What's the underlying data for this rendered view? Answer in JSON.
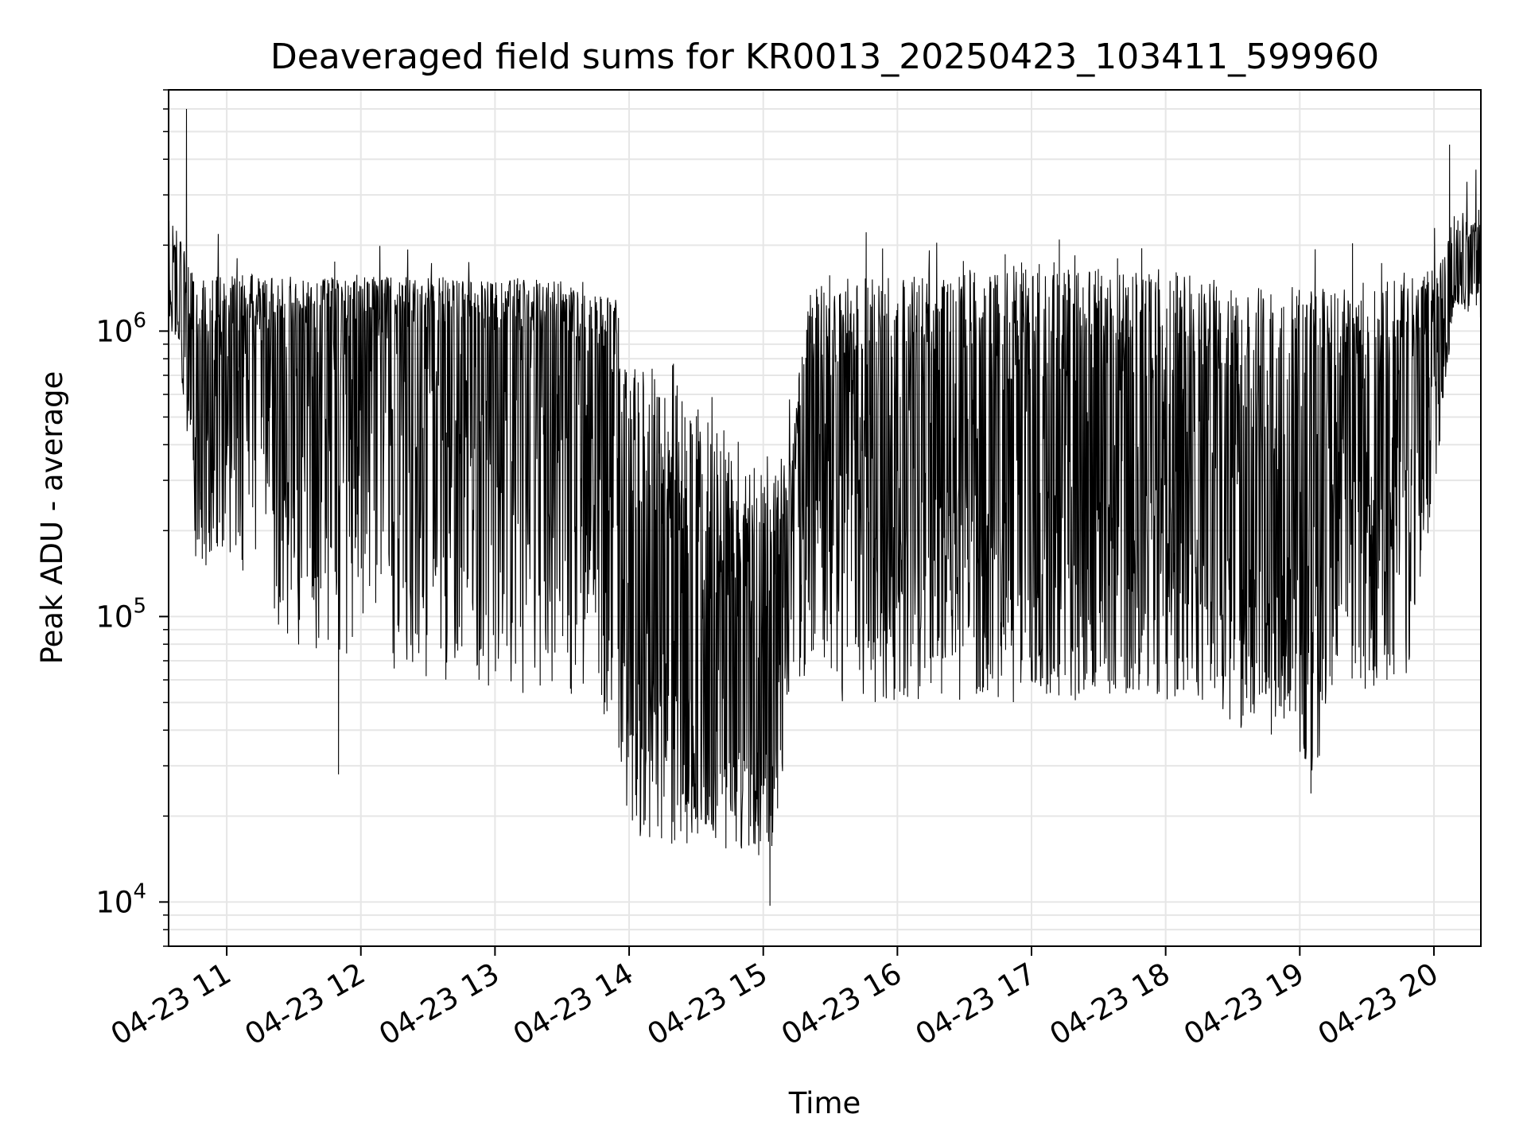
{
  "chart_data": {
    "type": "line",
    "title": "Deaveraged field sums for KR0013_20250423_103411_599960",
    "xlabel": "Time",
    "ylabel": "Peak ADU - average",
    "yscale": "log",
    "grid": true,
    "colors": {
      "line": "#000000",
      "grid": "#e6e6e6",
      "axes": "#000000"
    },
    "xlim": [
      "04-23 10:34",
      "04-23 20:21"
    ],
    "ylim": [
      7000,
      7000000
    ],
    "x_ticks": [
      "04-23 11",
      "04-23 12",
      "04-23 13",
      "04-23 14",
      "04-23 15",
      "04-23 16",
      "04-23 17",
      "04-23 18",
      "04-23 19",
      "04-23 20"
    ],
    "y_ticks": [
      {
        "base": "10",
        "exp": "4",
        "value": 10000
      },
      {
        "base": "10",
        "exp": "5",
        "value": 100000
      },
      {
        "base": "10",
        "exp": "6",
        "value": 1000000
      }
    ],
    "series": [
      {
        "time_unit": "hour of 2025-04-23",
        "samples": 3200,
        "envelope_hours": [
          10.57,
          10.65,
          10.75,
          10.85,
          11.0,
          11.5,
          12.0,
          12.5,
          13.0,
          13.5,
          13.9,
          14.0,
          14.3,
          14.6,
          14.9,
          15.05,
          15.2,
          15.35,
          15.6,
          16.0,
          16.5,
          17.0,
          17.5,
          18.0,
          18.3,
          18.6,
          18.9,
          19.1,
          19.3,
          19.5,
          19.8,
          20.05,
          20.15,
          20.35
        ],
        "envelope_upper": [
          2500000,
          2200000,
          1600000,
          1500000,
          1600000,
          1550000,
          1550000,
          1550000,
          1550000,
          1500000,
          1300000,
          900000,
          650000,
          500000,
          380000,
          300000,
          450000,
          1400000,
          1550000,
          1600000,
          1600000,
          1650000,
          1650000,
          1650000,
          1550000,
          1500000,
          1450000,
          1400000,
          1450000,
          1500000,
          1500000,
          1800000,
          2600000,
          2700000
        ],
        "envelope_median": [
          1500000,
          1200000,
          450000,
          500000,
          750000,
          850000,
          900000,
          900000,
          850000,
          800000,
          600000,
          150000,
          70000,
          45000,
          35000,
          35000,
          200000,
          400000,
          400000,
          350000,
          300000,
          300000,
          300000,
          330000,
          200000,
          150000,
          150000,
          500000,
          500000,
          300000,
          500000,
          900000,
          1500000,
          1500000
        ],
        "envelope_lower": [
          1000000,
          900000,
          150000,
          150000,
          150000,
          80000,
          70000,
          60000,
          55000,
          50000,
          40000,
          17000,
          16000,
          15000,
          15000,
          14000,
          40000,
          60000,
          50000,
          50000,
          50000,
          50000,
          50000,
          50000,
          45000,
          35000,
          40000,
          25000,
          60000,
          55000,
          60000,
          400000,
          1200000,
          1100000
        ]
      }
    ],
    "notable_points": [
      {
        "time": "04-23 10:42",
        "value": 6000000
      },
      {
        "time": "04-23 20:07",
        "value": 4500000
      },
      {
        "time": "04-23 15:03",
        "value": 9700
      },
      {
        "time": "04-23 19:05",
        "value": 24000
      },
      {
        "time": "04-23 11:50",
        "value": 28000
      }
    ]
  }
}
